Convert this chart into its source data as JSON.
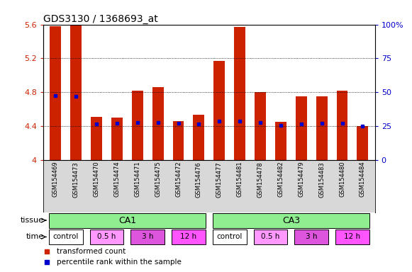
{
  "title": "GDS3130 / 1368693_at",
  "samples": [
    "GSM154469",
    "GSM154473",
    "GSM154470",
    "GSM154474",
    "GSM154471",
    "GSM154475",
    "GSM154472",
    "GSM154476",
    "GSM154477",
    "GSM154481",
    "GSM154478",
    "GSM154482",
    "GSM154479",
    "GSM154483",
    "GSM154480",
    "GSM154484"
  ],
  "bar_tops": [
    5.58,
    5.6,
    4.51,
    4.5,
    4.82,
    4.86,
    4.46,
    4.53,
    5.17,
    5.57,
    4.8,
    4.45,
    4.75,
    4.75,
    4.82,
    4.4
  ],
  "blue_marks": [
    4.76,
    4.75,
    4.42,
    4.43,
    4.44,
    4.44,
    4.43,
    4.42,
    4.46,
    4.46,
    4.44,
    4.41,
    4.42,
    4.43,
    4.43,
    4.4
  ],
  "y_min": 4.0,
  "y_max": 5.6,
  "y_ticks": [
    4.0,
    4.4,
    4.8,
    5.2,
    5.6
  ],
  "y_tick_labels": [
    "4",
    "4.4",
    "4.8",
    "5.2",
    "5.6"
  ],
  "right_y_ticks": [
    0,
    25,
    50,
    75,
    100
  ],
  "right_y_labels": [
    "0",
    "25",
    "50",
    "75",
    "100%"
  ],
  "tissue_labels": [
    {
      "label": "CA1",
      "start": 0,
      "end": 8
    },
    {
      "label": "CA3",
      "start": 8,
      "end": 16
    }
  ],
  "tissue_color": "#90EE90",
  "time_groups": [
    {
      "label": "control",
      "start": 0,
      "end": 2,
      "color": "#FFFFFF"
    },
    {
      "label": "0.5 h",
      "start": 2,
      "end": 4,
      "color": "#FF99FF"
    },
    {
      "label": "3 h",
      "start": 4,
      "end": 6,
      "color": "#DD55DD"
    },
    {
      "label": "12 h",
      "start": 6,
      "end": 8,
      "color": "#FF55FF"
    },
    {
      "label": "control",
      "start": 8,
      "end": 10,
      "color": "#FFFFFF"
    },
    {
      "label": "0.5 h",
      "start": 10,
      "end": 12,
      "color": "#FF99FF"
    },
    {
      "label": "3 h",
      "start": 12,
      "end": 14,
      "color": "#DD55DD"
    },
    {
      "label": "12 h",
      "start": 14,
      "end": 16,
      "color": "#FF55FF"
    }
  ],
  "bar_color": "#CC2200",
  "blue_color": "#0000CC",
  "sample_bg_color": "#D8D8D8",
  "legend_items": [
    {
      "label": "transformed count",
      "color": "#CC2200"
    },
    {
      "label": "percentile rank within the sample",
      "color": "#0000CC"
    }
  ]
}
